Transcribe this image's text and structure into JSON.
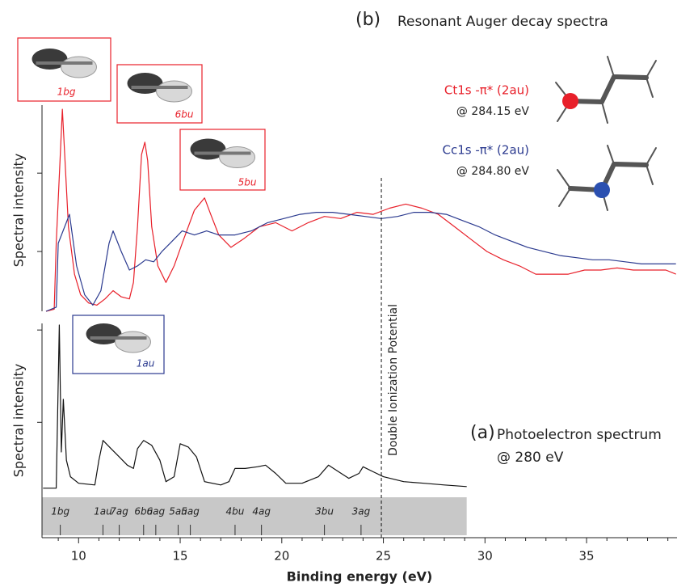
{
  "chart_data": [
    {
      "type": "line",
      "title": "Resonant Auger decay spectra",
      "panel_label": "(b)",
      "ylabel": "Spectral intensity",
      "xlim": [
        8.2,
        39.45
      ],
      "ylim": [
        0,
        10
      ],
      "yticks": [
        2.9,
        6.7
      ],
      "series": [
        {
          "name": "Ct1s -π* (2au)",
          "note": "@ 284.15 eV",
          "color": "#e8202a",
          "x": [
            8.4,
            8.8,
            8.9,
            9.2,
            9.5,
            9.8,
            10.1,
            10.5,
            10.9,
            11.3,
            11.7,
            12.1,
            12.5,
            12.7,
            12.9,
            13.1,
            13.26,
            13.4,
            13.6,
            13.9,
            14.3,
            14.7,
            15.1,
            15.7,
            16.2,
            16.5,
            16.9,
            17.5,
            18.1,
            18.9,
            19.7,
            20.5,
            21.3,
            22.1,
            22.9,
            23.7,
            24.5,
            25.3,
            26.1,
            26.9,
            27.7,
            28.5,
            29.3,
            30.1,
            30.9,
            31.7,
            32.5,
            33.3,
            34.1,
            34.9,
            35.7,
            36.5,
            37.3,
            38.1,
            38.9,
            39.4
          ],
          "values": [
            0,
            0.1,
            3.3,
            9.8,
            4.1,
            1.8,
            0.8,
            0.4,
            0.3,
            0.6,
            1.0,
            0.7,
            0.6,
            1.4,
            4.1,
            7.6,
            8.2,
            7.3,
            4.1,
            2.2,
            1.4,
            2.2,
            3.3,
            4.9,
            5.5,
            4.7,
            3.7,
            3.1,
            3.5,
            4.1,
            4.3,
            3.9,
            4.3,
            4.6,
            4.5,
            4.8,
            4.7,
            5.0,
            5.2,
            5.0,
            4.7,
            4.1,
            3.5,
            2.9,
            2.5,
            2.2,
            1.8,
            1.8,
            1.8,
            2.0,
            2.0,
            2.1,
            2.0,
            2.0,
            2.0,
            1.8
          ]
        },
        {
          "name": "Cc1s -π* (2au)",
          "note": "@ 284.80 eV",
          "color": "#2b3a8f",
          "x": [
            8.4,
            8.9,
            9.0,
            9.55,
            9.9,
            10.3,
            10.7,
            11.1,
            11.5,
            11.7,
            12.1,
            12.5,
            12.9,
            13.3,
            13.7,
            14.1,
            14.5,
            15.1,
            15.7,
            16.3,
            16.9,
            17.7,
            18.5,
            19.3,
            20.1,
            20.9,
            21.7,
            22.5,
            23.3,
            24.1,
            24.9,
            25.7,
            26.5,
            27.3,
            28.1,
            28.9,
            29.7,
            30.5,
            31.3,
            32.1,
            32.9,
            33.7,
            34.5,
            35.3,
            36.1,
            36.9,
            37.7,
            38.5,
            39.4
          ],
          "values": [
            0,
            0.2,
            3.3,
            4.7,
            2.2,
            0.8,
            0.3,
            1.0,
            3.3,
            3.9,
            2.9,
            2.0,
            2.2,
            2.5,
            2.4,
            2.9,
            3.3,
            3.9,
            3.7,
            3.9,
            3.7,
            3.7,
            3.9,
            4.3,
            4.5,
            4.7,
            4.8,
            4.8,
            4.7,
            4.6,
            4.5,
            4.6,
            4.8,
            4.8,
            4.7,
            4.4,
            4.1,
            3.7,
            3.4,
            3.1,
            2.9,
            2.7,
            2.6,
            2.5,
            2.5,
            2.4,
            2.3,
            2.3,
            2.3
          ]
        }
      ],
      "orbital_images": [
        {
          "label": "1bg"
        },
        {
          "label": "6bu"
        },
        {
          "label": "5bu"
        }
      ],
      "dip": {
        "label": "Double Ionization Potential",
        "x": 24.9
      }
    },
    {
      "type": "line",
      "title": "Photoelectron spectrum",
      "subtitle": "@ 280 eV",
      "panel_label": "(a)",
      "ylabel": "Spectral intensity",
      "xlabel": "Binding energy (eV)",
      "xlim": [
        8.2,
        39.45
      ],
      "ylim": [
        -0.3,
        1
      ],
      "yticks": [
        0.4,
        0.96
      ],
      "xticks": [
        10,
        15,
        20,
        25,
        30,
        35
      ],
      "xminorticks": [
        9,
        11,
        12,
        13,
        14,
        16,
        17,
        18,
        19,
        21,
        22,
        23,
        24,
        26,
        27,
        28,
        29,
        31,
        32,
        33,
        34,
        36,
        37,
        38,
        39
      ],
      "series": [
        {
          "color": "#111111",
          "x": [
            8.25,
            8.9,
            9.05,
            9.15,
            9.25,
            9.4,
            9.6,
            10,
            10.8,
            11.0,
            11.2,
            11.6,
            12.0,
            12.4,
            12.7,
            12.9,
            13.2,
            13.6,
            14.0,
            14.3,
            14.7,
            15.0,
            15.4,
            15.8,
            16.2,
            17.0,
            17.4,
            17.7,
            18.2,
            18.8,
            19.2,
            19.7,
            20.2,
            21.0,
            21.8,
            22.3,
            22.8,
            23.3,
            23.8,
            24.0,
            24.5,
            25.0,
            26.0,
            27.0,
            28.0,
            29.1
          ],
          "values": [
            0,
            0,
            0.99,
            0.22,
            0.54,
            0.17,
            0.07,
            0.03,
            0.02,
            0.17,
            0.29,
            0.24,
            0.19,
            0.14,
            0.12,
            0.24,
            0.29,
            0.26,
            0.17,
            0.04,
            0.07,
            0.27,
            0.25,
            0.19,
            0.04,
            0.02,
            0.04,
            0.12,
            0.12,
            0.13,
            0.14,
            0.09,
            0.03,
            0.03,
            0.07,
            0.14,
            0.1,
            0.06,
            0.09,
            0.13,
            0.1,
            0.07,
            0.04,
            0.03,
            0.02,
            0.01
          ]
        }
      ],
      "orbital_images": [
        {
          "label": "1au"
        }
      ],
      "orbitals": [
        {
          "label": "1bg",
          "x": 9.1
        },
        {
          "label": "1au",
          "x": 11.2
        },
        {
          "label": "7ag",
          "x": 12.0
        },
        {
          "label": "6bu",
          "x": 13.2
        },
        {
          "label": "6ag",
          "x": 13.8
        },
        {
          "label": "5au",
          "x": 14.9
        },
        {
          "label": "5ag",
          "x": 15.5
        },
        {
          "label": "4bu",
          "x": 17.7
        },
        {
          "label": "4ag",
          "x": 19.0
        },
        {
          "label": "3bu",
          "x": 22.1
        },
        {
          "label": "3ag",
          "x": 23.9
        }
      ]
    }
  ]
}
